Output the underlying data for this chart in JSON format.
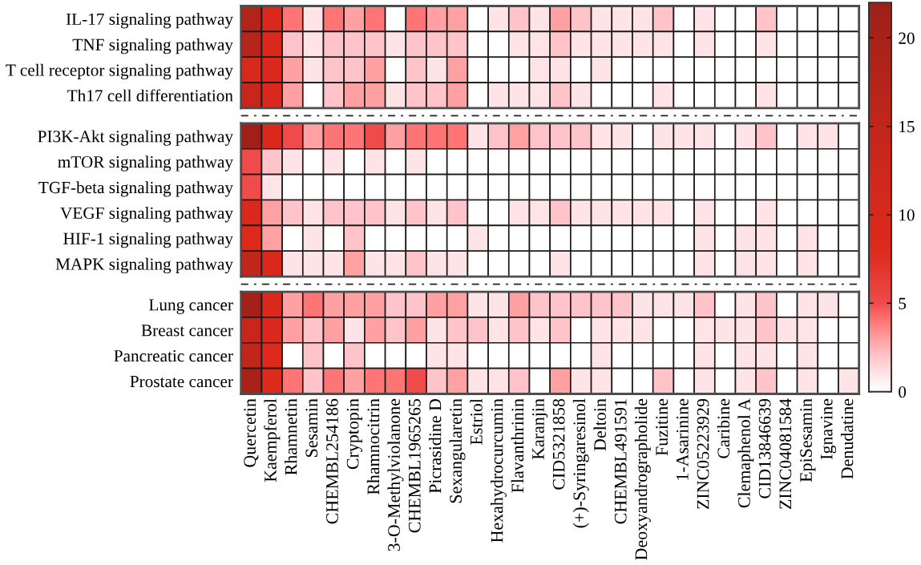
{
  "chart_data": {
    "type": "heatmap",
    "clim": [
      0,
      22
    ],
    "cticks": [
      0,
      5,
      10,
      15,
      20
    ],
    "categories": [
      "Quercetin",
      "Kaempferol",
      "Rhamnetin",
      "Sesamin",
      "CHEMBL254186",
      "Cryptopin",
      "Rhamnocitrin",
      "3-O-Methylviolanone",
      "CHEMBL1965265",
      "Picrasidine D",
      "Sexangularetin",
      "Estriol",
      "Hexahydrocurcumin",
      "Flavanthrinin",
      "Karanjin",
      "CID5321858",
      "(+)-Syringaresinol",
      "Deltoin",
      "CHEMBL491591",
      "Deoxyandrographolide",
      "Fuzitine",
      "1-Asarinine",
      "ZINC05223929",
      "Caribine",
      "Clemaphenol A",
      "CID13846639",
      "ZINC04081584",
      "EpiSesamin",
      "Ignavine",
      "Denudatine"
    ],
    "y_categories": [
      "IL-17 signaling pathway",
      "TNF signaling pathway",
      "T cell receptor signaling pathway",
      "Th17 cell differentiation",
      "PI3K-Akt signaling pathway",
      "mTOR signaling pathway",
      "TGF-beta signaling pathway",
      "VEGF signaling pathway",
      "HIF-1 signaling pathway",
      "MAPK signaling pathway",
      "Lung cancer",
      "Breast cancer",
      "Pancreatic cancer",
      "Prostate cancer"
    ],
    "cells": [
      [
        18,
        9,
        4,
        1,
        4,
        3,
        4,
        0,
        4,
        3,
        3,
        0,
        1,
        2,
        1,
        3,
        2,
        1,
        1,
        1,
        2,
        0,
        1,
        0,
        0,
        2,
        0,
        0,
        0,
        0
      ],
      [
        17,
        9,
        2,
        1,
        2,
        2,
        2,
        1,
        2,
        2,
        2,
        0,
        0,
        1,
        1,
        2,
        1,
        1,
        1,
        1,
        1,
        0,
        1,
        0,
        0,
        1,
        0,
        0,
        0,
        0
      ],
      [
        10,
        9,
        3,
        1,
        2,
        2,
        3,
        0,
        2,
        1,
        3,
        0,
        0,
        0,
        1,
        1,
        0,
        1,
        0,
        0,
        0,
        0,
        0,
        0,
        0,
        0,
        0,
        0,
        0,
        0
      ],
      [
        14,
        9,
        3,
        0,
        2,
        3,
        3,
        1,
        2,
        2,
        3,
        0,
        1,
        1,
        1,
        2,
        1,
        0,
        0,
        0,
        1,
        0,
        0,
        0,
        0,
        1,
        0,
        0,
        0,
        0
      ],
      [
        22,
        9,
        5,
        3,
        4,
        4,
        5,
        3,
        4,
        4,
        4,
        1,
        2,
        3,
        2,
        2,
        2,
        1,
        1,
        0,
        1,
        1,
        1,
        0,
        1,
        2,
        0,
        1,
        1,
        0
      ],
      [
        5,
        2,
        1,
        0,
        1,
        0,
        1,
        0,
        1,
        0,
        0,
        0,
        0,
        0,
        0,
        0,
        0,
        0,
        0,
        0,
        0,
        0,
        0,
        0,
        0,
        0,
        0,
        0,
        0,
        0
      ],
      [
        5,
        1,
        0,
        0,
        0,
        0,
        0,
        0,
        0,
        0,
        0,
        0,
        0,
        0,
        0,
        0,
        0,
        0,
        0,
        0,
        0,
        0,
        0,
        0,
        0,
        0,
        0,
        0,
        0,
        0
      ],
      [
        9,
        3,
        2,
        1,
        2,
        2,
        2,
        1,
        2,
        1,
        2,
        0,
        0,
        1,
        1,
        2,
        1,
        1,
        1,
        1,
        1,
        0,
        1,
        0,
        0,
        1,
        0,
        0,
        0,
        0
      ],
      [
        8,
        3,
        0,
        1,
        0,
        2,
        0,
        0,
        0,
        0,
        0,
        1,
        0,
        0,
        0,
        0,
        0,
        0,
        0,
        0,
        0,
        0,
        1,
        0,
        1,
        1,
        0,
        1,
        0,
        0
      ],
      [
        15,
        9,
        1,
        1,
        1,
        3,
        1,
        1,
        2,
        1,
        1,
        0,
        0,
        0,
        0,
        1,
        0,
        0,
        0,
        0,
        0,
        0,
        1,
        0,
        1,
        1,
        0,
        1,
        0,
        0
      ],
      [
        21,
        9,
        3,
        4,
        3,
        3,
        3,
        2,
        2,
        3,
        3,
        1,
        1,
        3,
        2,
        2,
        2,
        2,
        2,
        1,
        1,
        1,
        2,
        0,
        1,
        2,
        0,
        1,
        1,
        0
      ],
      [
        14,
        9,
        3,
        2,
        3,
        1,
        3,
        2,
        3,
        1,
        2,
        2,
        1,
        2,
        1,
        2,
        0,
        1,
        1,
        1,
        0,
        0,
        1,
        1,
        1,
        2,
        1,
        1,
        0,
        0
      ],
      [
        15,
        8,
        0,
        2,
        0,
        2,
        0,
        0,
        0,
        1,
        1,
        0,
        0,
        0,
        0,
        0,
        0,
        1,
        0,
        0,
        0,
        0,
        1,
        0,
        1,
        1,
        0,
        1,
        0,
        0
      ],
      [
        20,
        8,
        4,
        2,
        4,
        3,
        4,
        4,
        5,
        2,
        3,
        1,
        1,
        2,
        0,
        3,
        1,
        1,
        0,
        0,
        2,
        0,
        1,
        0,
        1,
        2,
        0,
        1,
        0,
        1
      ]
    ]
  }
}
